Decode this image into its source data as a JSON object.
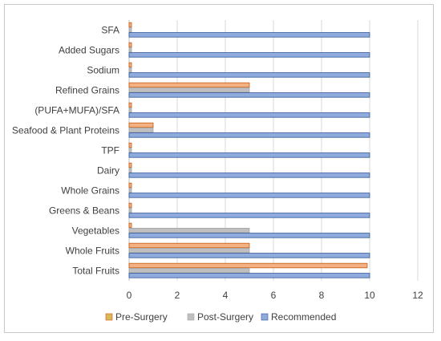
{
  "chart_data": {
    "type": "bar",
    "orientation": "horizontal",
    "categories": [
      "SFA",
      "Added Sugars",
      "Sodium",
      "Refined Grains",
      "(PUFA+MUFA)/SFA",
      "Seafood & Plant Proteins",
      "TPF",
      "Dairy",
      "Whole Grains",
      "Greens & Beans",
      "Vegetables",
      "Whole Fruits",
      "Total Fruits"
    ],
    "series": [
      {
        "name": "Pre-Surgery",
        "color": "#f4b183",
        "border": "#c55a11",
        "values": [
          0.1,
          0.1,
          0.1,
          5,
          0.1,
          1,
          0.1,
          0.1,
          0.1,
          0.1,
          0.1,
          5,
          9.9
        ]
      },
      {
        "name": "Post-Surgery",
        "color": "#bfbfbf",
        "border": "#a6a6a6",
        "values": [
          0.1,
          0.1,
          0.1,
          5,
          0.1,
          1,
          0.1,
          0.1,
          0.1,
          0.1,
          5,
          5,
          5
        ]
      },
      {
        "name": "Recommended",
        "color": "#8faadc",
        "border": "#2f5597",
        "values": [
          10,
          10,
          10,
          10,
          10,
          10,
          10,
          10,
          10,
          10,
          10,
          10,
          10
        ]
      }
    ],
    "xlim": [
      0,
      12
    ],
    "xticks": [
      "0",
      "2",
      "4",
      "6",
      "8",
      "10",
      "12"
    ],
    "grid": true,
    "legend_position": "bottom",
    "legend_swatches": [
      "#d9b85a",
      "#bfbfbf",
      "#8faadc"
    ],
    "title": "",
    "xlabel": "",
    "ylabel": ""
  }
}
